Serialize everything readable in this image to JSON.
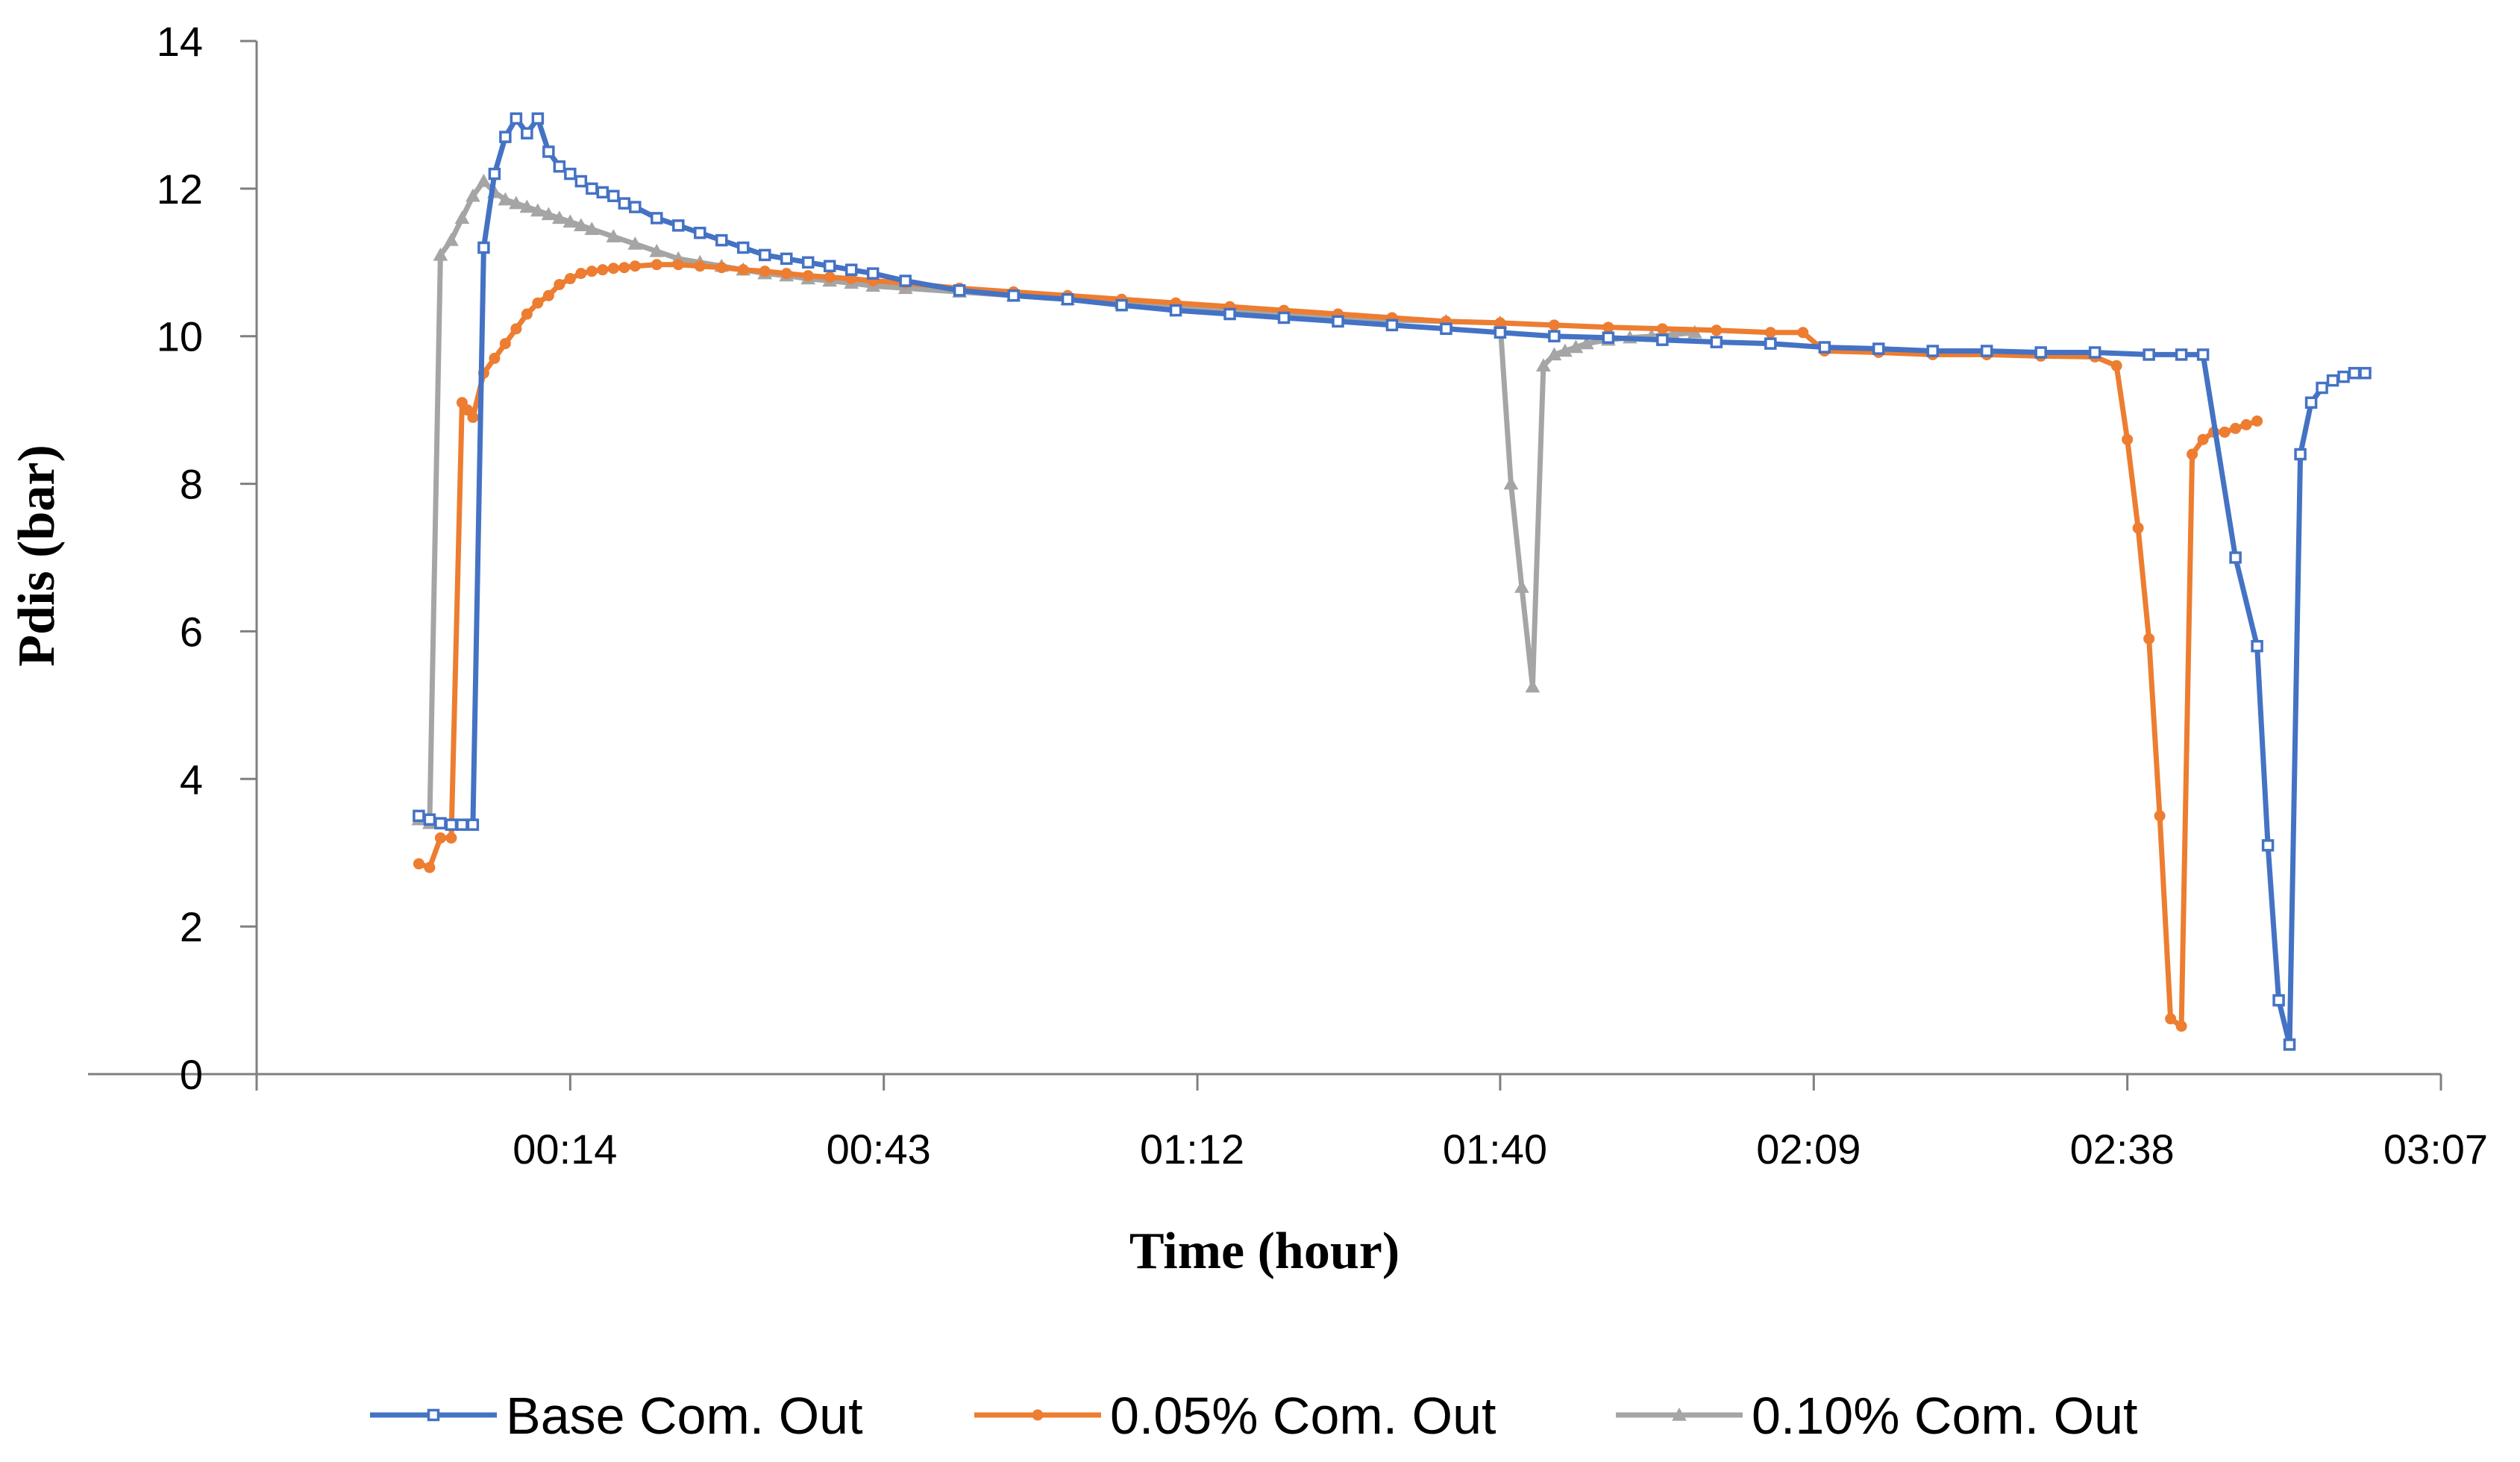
{
  "chart_data": {
    "type": "line",
    "title": "",
    "xlabel": "Time (hour)",
    "ylabel": "Pdis (bar)",
    "x_unit": "minutes",
    "xlim": [
      -15,
      187
    ],
    "ylim": [
      0,
      14
    ],
    "yticks": [
      0,
      2,
      4,
      6,
      8,
      10,
      12,
      14
    ],
    "xticks": [
      {
        "value": 14,
        "label": "00:14"
      },
      {
        "value": 43,
        "label": "00:43"
      },
      {
        "value": 72,
        "label": "01:12"
      },
      {
        "value": 100,
        "label": "01:40"
      },
      {
        "value": 129,
        "label": "02:09"
      },
      {
        "value": 158,
        "label": "02:38"
      },
      {
        "value": 187,
        "label": "03:07"
      }
    ],
    "legend_position": "bottom",
    "series": [
      {
        "name": "Base Com. Out",
        "color": "#4472C4",
        "marker": "square",
        "x": [
          0,
          1,
          2,
          3,
          4,
          5,
          6,
          7,
          8,
          9,
          10,
          11,
          12,
          13,
          14,
          15,
          16,
          17,
          18,
          19,
          20,
          22,
          24,
          26,
          28,
          30,
          32,
          34,
          36,
          38,
          40,
          42,
          45,
          50,
          55,
          60,
          65,
          70,
          75,
          80,
          85,
          90,
          95,
          100,
          105,
          110,
          115,
          120,
          125,
          130,
          135,
          140,
          145,
          150,
          155,
          160,
          163,
          165,
          168,
          170,
          171,
          172,
          173,
          174,
          175,
          176,
          177,
          178,
          179,
          180
        ],
        "values": [
          3.5,
          3.45,
          3.4,
          3.38,
          3.38,
          3.38,
          11.2,
          12.2,
          12.7,
          12.95,
          12.75,
          12.95,
          12.5,
          12.3,
          12.2,
          12.1,
          12.0,
          11.95,
          11.9,
          11.8,
          11.75,
          11.6,
          11.5,
          11.4,
          11.3,
          11.2,
          11.1,
          11.05,
          11.0,
          10.95,
          10.9,
          10.85,
          10.75,
          10.62,
          10.55,
          10.5,
          10.42,
          10.35,
          10.3,
          10.25,
          10.2,
          10.15,
          10.1,
          10.05,
          10.0,
          9.98,
          9.95,
          9.92,
          9.9,
          9.85,
          9.83,
          9.8,
          9.8,
          9.78,
          9.78,
          9.75,
          9.75,
          9.75,
          7.0,
          5.8,
          3.1,
          1.0,
          0.4,
          8.4,
          9.1,
          9.3,
          9.4,
          9.45,
          9.5,
          9.5
        ]
      },
      {
        "name": "0.05% Com. Out",
        "color": "#ED7D31",
        "marker": "circle",
        "x": [
          0,
          1,
          2,
          3,
          4,
          4.5,
          5,
          6,
          7,
          8,
          9,
          10,
          11,
          12,
          13,
          14,
          15,
          16,
          17,
          18,
          19,
          20,
          22,
          24,
          26,
          28,
          30,
          32,
          34,
          36,
          38,
          40,
          42,
          45,
          50,
          55,
          60,
          65,
          70,
          75,
          80,
          85,
          90,
          95,
          100,
          105,
          110,
          115,
          120,
          125,
          128,
          130,
          135,
          140,
          145,
          150,
          155,
          157,
          158,
          159,
          160,
          161,
          162,
          163,
          164,
          165,
          166,
          167,
          168,
          169,
          170
        ],
        "values": [
          2.85,
          2.8,
          3.2,
          3.2,
          9.1,
          9.0,
          8.9,
          9.5,
          9.7,
          9.9,
          10.1,
          10.3,
          10.45,
          10.55,
          10.7,
          10.78,
          10.85,
          10.88,
          10.9,
          10.92,
          10.93,
          10.95,
          10.97,
          10.97,
          10.95,
          10.93,
          10.9,
          10.88,
          10.85,
          10.82,
          10.8,
          10.78,
          10.75,
          10.72,
          10.65,
          10.6,
          10.55,
          10.5,
          10.45,
          10.4,
          10.35,
          10.3,
          10.25,
          10.2,
          10.18,
          10.15,
          10.12,
          10.1,
          10.08,
          10.05,
          10.05,
          9.8,
          9.78,
          9.75,
          9.75,
          9.73,
          9.72,
          9.6,
          8.6,
          7.4,
          5.9,
          3.5,
          0.75,
          0.65,
          8.4,
          8.6,
          8.7,
          8.7,
          8.75,
          8.8,
          8.85
        ]
      },
      {
        "name": "0.10% Com. Out",
        "color": "#A5A5A5",
        "marker": "triangle",
        "x": [
          0,
          1,
          2,
          3,
          4,
          5,
          6,
          7,
          8,
          9,
          10,
          11,
          12,
          13,
          14,
          15,
          16,
          18,
          20,
          22,
          24,
          26,
          28,
          30,
          32,
          34,
          36,
          38,
          40,
          42,
          45,
          50,
          55,
          60,
          65,
          70,
          75,
          80,
          85,
          90,
          95,
          100,
          101,
          102,
          103,
          104,
          105,
          106,
          107,
          108,
          110,
          112,
          114,
          116,
          118
        ],
        "values": [
          3.45,
          3.4,
          11.1,
          11.3,
          11.6,
          11.9,
          12.1,
          11.95,
          11.85,
          11.8,
          11.75,
          11.7,
          11.65,
          11.6,
          11.55,
          11.5,
          11.45,
          11.35,
          11.25,
          11.15,
          11.05,
          11.0,
          10.95,
          10.9,
          10.85,
          10.82,
          10.78,
          10.75,
          10.72,
          10.68,
          10.65,
          10.6,
          10.55,
          10.5,
          10.45,
          10.4,
          10.35,
          10.3,
          10.25,
          10.22,
          10.2,
          10.18,
          8.0,
          6.6,
          5.25,
          9.6,
          9.75,
          9.8,
          9.85,
          9.9,
          9.95,
          9.98,
          10.0,
          10.02,
          10.05
        ]
      }
    ]
  }
}
